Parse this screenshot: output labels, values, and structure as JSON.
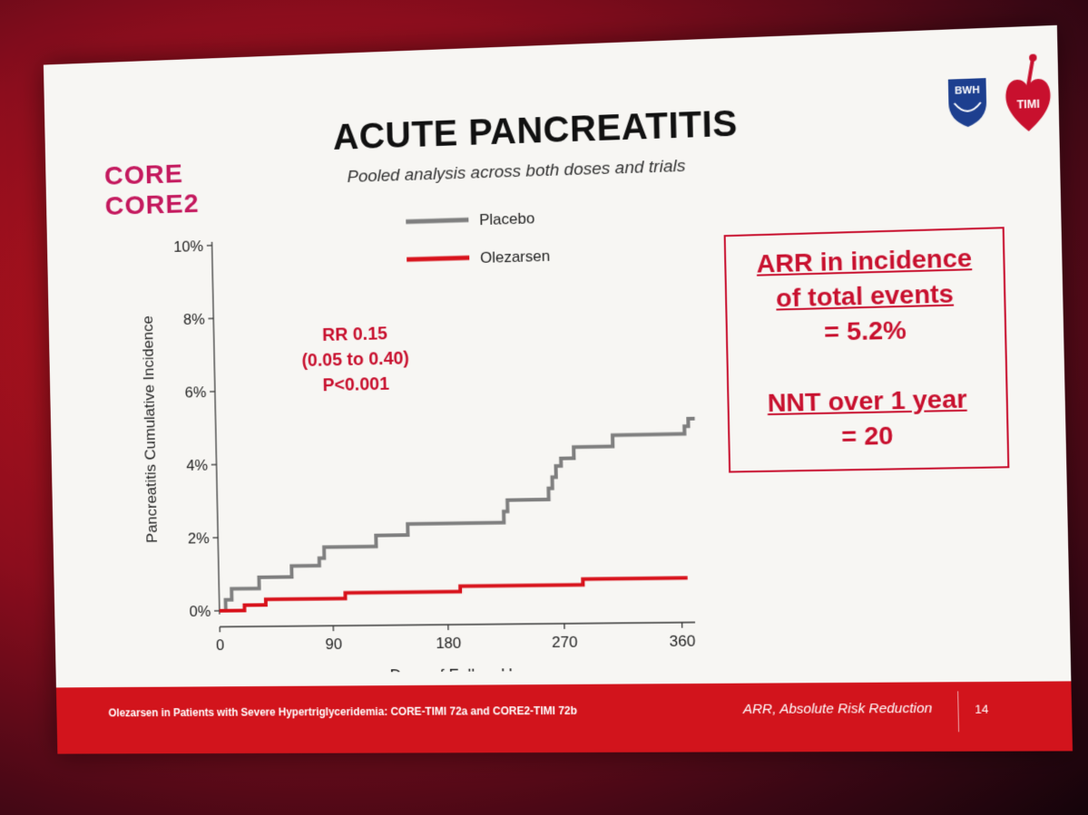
{
  "slide": {
    "logo_lines": [
      "CORE",
      "CORE2"
    ],
    "title": "ACUTE PANCREATITIS",
    "subtitle": "Pooled analysis across both doses and trials",
    "logos": [
      "BWH",
      "TIMI"
    ],
    "stats": {
      "line1": "RR 0.15",
      "line2": "(0.05 to 0.40)",
      "line3": "P<0.001"
    },
    "arr_box": {
      "line1": "ARR in incidence",
      "line2": "of total events",
      "line3": "= 5.2%",
      "line4": "NNT over 1 year",
      "line5": "= 20"
    },
    "footer": {
      "left": "Olezarsen in Patients with Severe Hypertriglyceridemia: CORE-TIMI 72a and CORE2-TIMI 72b",
      "right": "ARR, Absolute Risk Reduction",
      "page": "14"
    }
  },
  "colors": {
    "placebo": "#7f7f7f",
    "olezarsen": "#d8121b",
    "accent": "#c8102e",
    "footer": "#d2141c",
    "logo": "#c4195e"
  },
  "chart_data": {
    "type": "line",
    "step": true,
    "xlabel": "Days of Follow-Up",
    "ylabel": "Pancreatitis Cumulative Incidence",
    "xlim": [
      0,
      370
    ],
    "ylim": [
      0,
      10
    ],
    "xticks": [
      0,
      90,
      180,
      270,
      360
    ],
    "yticks": [
      0,
      2,
      4,
      6,
      8,
      10
    ],
    "ytick_labels": [
      "0%",
      "2%",
      "4%",
      "6%",
      "8%",
      "10%"
    ],
    "xtick_labels": [
      "0",
      "90",
      "180",
      "270",
      "360"
    ],
    "legend_position": "top-center",
    "series": [
      {
        "name": "Placebo",
        "points": [
          [
            0,
            0
          ],
          [
            5,
            0
          ],
          [
            5,
            0.3
          ],
          [
            10,
            0.3
          ],
          [
            10,
            0.6
          ],
          [
            32,
            0.6
          ],
          [
            32,
            0.9
          ],
          [
            58,
            0.9
          ],
          [
            58,
            1.2
          ],
          [
            80,
            1.2
          ],
          [
            80,
            1.4
          ],
          [
            84,
            1.4
          ],
          [
            84,
            1.7
          ],
          [
            125,
            1.7
          ],
          [
            125,
            2.0
          ],
          [
            150,
            2.0
          ],
          [
            150,
            2.3
          ],
          [
            225,
            2.3
          ],
          [
            225,
            2.6
          ],
          [
            228,
            2.6
          ],
          [
            228,
            2.9
          ],
          [
            260,
            2.9
          ],
          [
            260,
            3.2
          ],
          [
            263,
            3.2
          ],
          [
            263,
            3.5
          ],
          [
            266,
            3.5
          ],
          [
            266,
            3.8
          ],
          [
            270,
            3.8
          ],
          [
            270,
            4.0
          ],
          [
            280,
            4.0
          ],
          [
            280,
            4.3
          ],
          [
            310,
            4.3
          ],
          [
            310,
            4.6
          ],
          [
            365,
            4.6
          ],
          [
            365,
            4.8
          ],
          [
            368,
            4.8
          ],
          [
            368,
            5.0
          ],
          [
            373,
            5.0
          ]
        ]
      },
      {
        "name": "Olezarsen",
        "points": [
          [
            0,
            0
          ],
          [
            20,
            0
          ],
          [
            20,
            0.15
          ],
          [
            37,
            0.15
          ],
          [
            37,
            0.3
          ],
          [
            100,
            0.3
          ],
          [
            100,
            0.45
          ],
          [
            190,
            0.45
          ],
          [
            190,
            0.6
          ],
          [
            285,
            0.6
          ],
          [
            285,
            0.75
          ],
          [
            365,
            0.75
          ]
        ]
      }
    ]
  }
}
